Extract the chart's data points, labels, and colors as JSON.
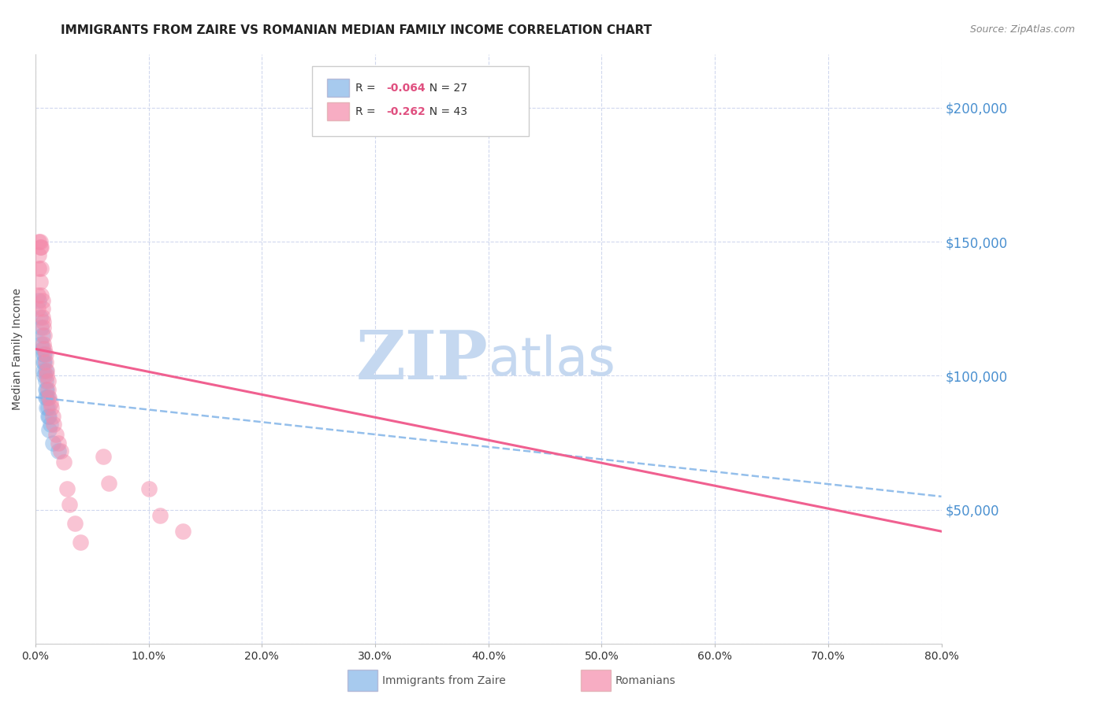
{
  "title": "IMMIGRANTS FROM ZAIRE VS ROMANIAN MEDIAN FAMILY INCOME CORRELATION CHART",
  "source": "Source: ZipAtlas.com",
  "ylabel": "Median Family Income",
  "yticks": [
    0,
    50000,
    100000,
    150000,
    200000
  ],
  "ytick_labels": [
    "",
    "$50,000",
    "$100,000",
    "$150,000",
    "$200,000"
  ],
  "ymin": 0,
  "ymax": 220000,
  "xmin": 0.0,
  "xmax": 0.8,
  "zaire_color": "#82b4e8",
  "romanian_color": "#f48aaa",
  "trend_zaire_color": "#82b4e8",
  "trend_romanian_color": "#f06090",
  "zaire_scatter": [
    [
      0.003,
      128000
    ],
    [
      0.004,
      122000
    ],
    [
      0.005,
      118000
    ],
    [
      0.005,
      112000
    ],
    [
      0.006,
      115000
    ],
    [
      0.006,
      110000
    ],
    [
      0.007,
      108000
    ],
    [
      0.007,
      105000
    ],
    [
      0.007,
      102000
    ],
    [
      0.008,
      108000
    ],
    [
      0.008,
      105000
    ],
    [
      0.008,
      100000
    ],
    [
      0.009,
      102000
    ],
    [
      0.009,
      98000
    ],
    [
      0.009,
      95000
    ],
    [
      0.009,
      92000
    ],
    [
      0.01,
      95000
    ],
    [
      0.01,
      92000
    ],
    [
      0.01,
      88000
    ],
    [
      0.011,
      92000
    ],
    [
      0.011,
      88000
    ],
    [
      0.011,
      85000
    ],
    [
      0.012,
      85000
    ],
    [
      0.012,
      80000
    ],
    [
      0.013,
      82000
    ],
    [
      0.015,
      75000
    ],
    [
      0.02,
      72000
    ]
  ],
  "romanian_scatter": [
    [
      0.002,
      130000
    ],
    [
      0.002,
      125000
    ],
    [
      0.003,
      150000
    ],
    [
      0.003,
      145000
    ],
    [
      0.003,
      140000
    ],
    [
      0.004,
      150000
    ],
    [
      0.004,
      148000
    ],
    [
      0.004,
      135000
    ],
    [
      0.005,
      148000
    ],
    [
      0.005,
      140000
    ],
    [
      0.005,
      130000
    ],
    [
      0.006,
      128000
    ],
    [
      0.006,
      125000
    ],
    [
      0.006,
      122000
    ],
    [
      0.007,
      120000
    ],
    [
      0.007,
      118000
    ],
    [
      0.007,
      112000
    ],
    [
      0.008,
      115000
    ],
    [
      0.008,
      110000
    ],
    [
      0.009,
      108000
    ],
    [
      0.009,
      105000
    ],
    [
      0.01,
      102000
    ],
    [
      0.01,
      100000
    ],
    [
      0.011,
      98000
    ],
    [
      0.011,
      95000
    ],
    [
      0.012,
      92000
    ],
    [
      0.013,
      90000
    ],
    [
      0.014,
      88000
    ],
    [
      0.015,
      85000
    ],
    [
      0.016,
      82000
    ],
    [
      0.018,
      78000
    ],
    [
      0.02,
      75000
    ],
    [
      0.022,
      72000
    ],
    [
      0.025,
      68000
    ],
    [
      0.028,
      58000
    ],
    [
      0.03,
      52000
    ],
    [
      0.035,
      45000
    ],
    [
      0.04,
      38000
    ],
    [
      0.06,
      70000
    ],
    [
      0.065,
      60000
    ],
    [
      0.1,
      58000
    ],
    [
      0.11,
      48000
    ],
    [
      0.13,
      42000
    ]
  ],
  "background_color": "#ffffff",
  "grid_color": "#d0d8ee",
  "watermark_zip": "ZIP",
  "watermark_atlas": "atlas",
  "watermark_color": "#c5d8f0",
  "title_fontsize": 11,
  "source_fontsize": 9,
  "legend_fontsize": 10,
  "ylabel_fontsize": 10,
  "ytick_color": "#4a90d0",
  "xtick_color": "#333333",
  "legend_R1": "R = ",
  "legend_V1": "-0.064",
  "legend_N1": "  N = 27",
  "legend_R2": "R = ",
  "legend_V2": "-0.262",
  "legend_N2": "  N = 43"
}
